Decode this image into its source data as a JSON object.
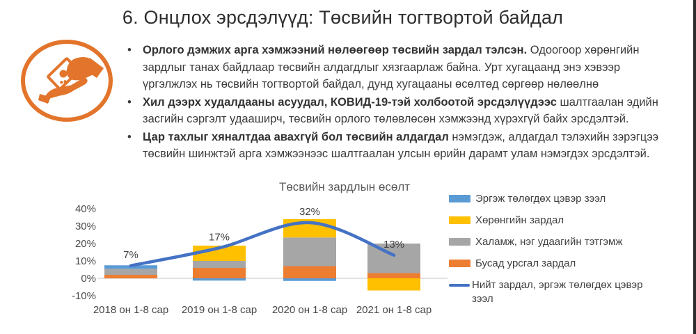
{
  "slide": {
    "title": "6. Онцлох эрсдэлүүд: Төсвийн тогтвортой байдал"
  },
  "icon": {
    "name": "hand-receiving-money",
    "color": "#E2752B"
  },
  "bullets": [
    {
      "bold": "Орлого дэмжих арга хэмжээний нөлөөгөөр төсвийн зардал тэлсэн.",
      "rest": " Одоогоор хөрөнгийн зардлыг танах байдлаар төсвийн алдагдлыг хязгаарлаж байна. Урт хугацаанд энэ хэвээр үргэлжлэх нь төсвийн тогтвортой байдал, дунд хугацааны өсөлтөд сөргөөр нөлөөлнө"
    },
    {
      "bold": "Хил дээрх худалдааны асуудал, КОВИД-19-тэй холбоотой эрсдэлүүдээс",
      "rest": " шалтгаалан эдийн засгийн сэргэлт удааширч, төсвийн орлого төлөвлөсөн хэмжээнд хүрэхгүй байх эрсдэлтэй."
    },
    {
      "bold": "Цар тахлыг хяналтдаа авахгүй бол төсвийн алдагдал",
      "rest": " нэмэгдэж, алдагдал тэлэхийн зэрэгцээ төсвийн шинжтэй арга хэмжээнээс шалтгаалан улсын өрийн дарамт улам нэмэгдэх эрсдэлтэй."
    }
  ],
  "chart_data": {
    "type": "bar",
    "subtype": "stacked-columns-with-smooth-line",
    "title": "Төсвийн зардлын өсөлт",
    "categories": [
      "2018 он 1-8 сар",
      "2019 он 1-8 сар",
      "2020 он 1-8 сар",
      "2021 он 1-8 сар"
    ],
    "series": [
      {
        "name": "Эргэж төлөгдөх цэвэр зээл",
        "color": "#5B9BD5",
        "values": [
          2,
          -1.3,
          -1.5,
          0
        ]
      },
      {
        "name": "Хөрөнгийн зардал",
        "color": "#FFC000",
        "values": [
          0,
          8.8,
          10.5,
          -7
        ]
      },
      {
        "name": "Халамж, нэг удаагийн тэтгэмж",
        "color": "#A6A6A6",
        "values": [
          3.5,
          4,
          16.5,
          17
        ]
      },
      {
        "name": "Бусад урсгал зардал",
        "color": "#ED7D31",
        "values": [
          2,
          6,
          7,
          3
        ]
      }
    ],
    "stack_order": [
      3,
      2,
      1,
      0
    ],
    "line_series": {
      "name": "Нийт зардал, эргэж төлөгдөх цэвэр зээл",
      "color": "#4472C4",
      "values": [
        7.3,
        17.5,
        32,
        13.3
      ]
    },
    "data_labels": [
      "7%",
      "17%",
      "32%",
      "13%"
    ],
    "y_ticks": [
      "40%",
      "30%",
      "20%",
      "10%",
      "0%",
      "-10%"
    ],
    "ylim": [
      -10,
      40
    ],
    "gridline_color": "#D9D9D9",
    "axis_label_color": "#4d4d4d",
    "legend_position": "right",
    "grid": "zero-line-only"
  }
}
